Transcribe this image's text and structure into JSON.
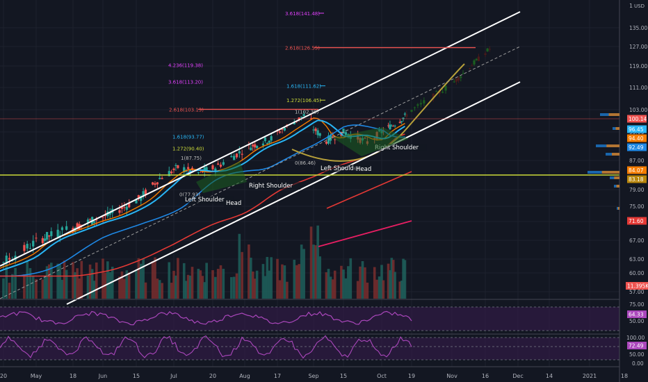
{
  "chart_data": {
    "type": "line",
    "currency": "USD",
    "price_axis": {
      "ticks": [
        135,
        127,
        119,
        111,
        103,
        95,
        87,
        79,
        75,
        71,
        67,
        63,
        60,
        57
      ],
      "labels": [
        "135.00",
        "127.00",
        "119.00",
        "111.00",
        "103.00",
        "95.00",
        "87.00",
        "79.00",
        "75.00",
        "71.00",
        "67.00",
        "63.00",
        "60.00",
        "57.00"
      ],
      "top_label": "1"
    },
    "price_badges": [
      {
        "value": 100.14,
        "label": "100.14",
        "color": "#ef5350"
      },
      {
        "value": 96.45,
        "label": "96.45",
        "color": "#29b6f6"
      },
      {
        "value": 94.4,
        "label": "94.40",
        "color": "#f57c00"
      },
      {
        "value": 92.49,
        "label": "92.49",
        "color": "#1e88e5"
      },
      {
        "value": 84.07,
        "label": "84.07",
        "color": "#f57c00"
      },
      {
        "value": 83.18,
        "label": "83.18",
        "color": "#b8860b"
      },
      {
        "value": 71.6,
        "label": "71.60",
        "color": "#e53935"
      }
    ],
    "volume_badge": {
      "label": "11.395K",
      "color": "#ef5350"
    },
    "time_axis": {
      "labels": [
        "20",
        "May",
        "18",
        "Jun",
        "15",
        "Jul",
        "20",
        "Aug",
        "17",
        "Sep",
        "15",
        "Oct",
        "19",
        "Nov",
        "16",
        "Dec",
        "14",
        "2021",
        "18"
      ],
      "dates": [
        "2020-04-20",
        "2020-05-01",
        "2020-05-18",
        "2020-06-01",
        "2020-06-15",
        "2020-07-01",
        "2020-07-20",
        "2020-08-01",
        "2020-08-17",
        "2020-09-01",
        "2020-09-15",
        "2020-10-01",
        "2020-10-19",
        "2020-11-01",
        "2020-11-16",
        "2020-12-01",
        "2020-12-14",
        "2021-01-01",
        "2021-01-18"
      ]
    },
    "fib_labels": [
      {
        "label": "3.618(141.48)",
        "value": 141.48,
        "color": "#e040fb"
      },
      {
        "label": "2.618(126.55)",
        "value": 126.55,
        "color": "#ef5350"
      },
      {
        "label": "4.236(119.38)",
        "value": 119.38,
        "color": "#e040fb"
      },
      {
        "label": "3.618(113.20)",
        "value": 113.2,
        "color": "#e040fb"
      },
      {
        "label": "1.618(111.62)",
        "value": 111.62,
        "color": "#29b6f6"
      },
      {
        "label": "1.272(106.45)",
        "value": 106.45,
        "color": "#cddc39"
      },
      {
        "label": "2.618(103.13)",
        "value": 103.13,
        "color": "#ef5350"
      },
      {
        "label": "1(102.39)",
        "value": 102.39,
        "color": "#bdbdbd"
      },
      {
        "label": "1.618(93.77)",
        "value": 93.77,
        "color": "#29b6f6"
      },
      {
        "label": "1.272(90.40)",
        "value": 90.4,
        "color": "#cddc39"
      },
      {
        "label": "1(87.75)",
        "value": 87.75,
        "color": "#bdbdbd"
      },
      {
        "label": "0(86.46)",
        "value": 86.46,
        "color": "#bdbdbd"
      },
      {
        "label": "0(77.93)",
        "value": 77.93,
        "color": "#bdbdbd"
      }
    ],
    "pattern_labels": [
      "Left Shoulder",
      "Head",
      "Right Shoulder",
      "Left Shoulder",
      "Head",
      "Right Shoulder"
    ],
    "rsi_panel": {
      "ticks": [
        "75.00",
        "50.00"
      ],
      "value_label": "64.33"
    },
    "stoch_panel": {
      "ticks": [
        "100.00",
        "50.00",
        "0.00"
      ],
      "value_label": "72.49"
    }
  }
}
